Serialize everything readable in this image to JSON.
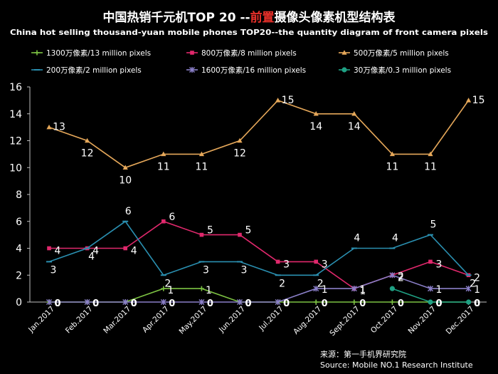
{
  "chart_data": {
    "type": "line",
    "title_parts": [
      "中国热销千元机TOP 20 --",
      "前置",
      "摄像头像素机型结构表"
    ],
    "subtitle": "China hot selling thousand-yuan mobile phones TOP20--the quantity diagram of front camera pixels",
    "categories": [
      "Jan.2017",
      "Feb.2017",
      "Mar.2017",
      "Apr.2017",
      "May.2017",
      "Jun.2017",
      "Jul.2017",
      "Aug.2017",
      "Sept.2017",
      "Oct.2017",
      "Nov.2017",
      "Dec.2017"
    ],
    "y_ticks": [
      "0",
      "2",
      "4",
      "6",
      "8",
      "10",
      "12",
      "14",
      "16"
    ],
    "ylim": [
      0,
      16
    ],
    "grid": false,
    "legend_position": "top",
    "series": [
      {
        "name": "1300万像素/13 million pixels",
        "color": "#7cc242",
        "marker": "plus",
        "values": [
          0,
          0,
          0,
          1,
          1,
          0,
          0,
          0,
          0,
          0,
          0,
          0
        ],
        "labels": [
          "0",
          "0",
          "0",
          "1",
          "1",
          "0",
          "0",
          "0",
          "0",
          "0",
          "0",
          "0"
        ]
      },
      {
        "name": "800万像素/8 million pixels",
        "color": "#e0286c",
        "marker": "square",
        "values": [
          4,
          4,
          4,
          6,
          5,
          5,
          3,
          3,
          1,
          2,
          3,
          2
        ],
        "labels": [
          "4",
          "4",
          "4",
          "6",
          "5",
          "5",
          "3",
          "3",
          "1",
          "2",
          "3",
          "2"
        ]
      },
      {
        "name": "500万像素/5 million pixels",
        "color": "#e6a85a",
        "marker": "triangle",
        "values": [
          13,
          12,
          10,
          11,
          11,
          12,
          15,
          14,
          14,
          11,
          11,
          15
        ],
        "labels": [
          "13",
          "12",
          "10",
          "11",
          "11",
          "12",
          "15",
          "14",
          "14",
          "11",
          "11",
          "15"
        ]
      },
      {
        "name": "200万像素/2 million pixels",
        "color": "#2a8fb0",
        "marker": "dash",
        "values": [
          3,
          4,
          6,
          2,
          3,
          3,
          2,
          2,
          4,
          4,
          5,
          2
        ],
        "labels": [
          "3",
          "4",
          "6",
          "2",
          "3",
          "3",
          "2",
          "2",
          "4",
          "4",
          "5",
          "2"
        ]
      },
      {
        "name": "1600万像素/16 million pixels",
        "color": "#8a7fc8",
        "marker": "star",
        "values": [
          0,
          0,
          0,
          0,
          0,
          0,
          0,
          1,
          1,
          2,
          1,
          1
        ],
        "labels": [
          "0",
          "0",
          "0",
          "0",
          "0",
          "0",
          "0",
          "1",
          "1",
          "2",
          "1",
          "1"
        ]
      },
      {
        "name": "30万像素/0.3 million pixels",
        "color": "#1fa184",
        "marker": "circle",
        "values": [
          null,
          null,
          null,
          null,
          null,
          null,
          null,
          null,
          null,
          1,
          0,
          0
        ],
        "labels": [
          "",
          "",
          "",
          "",
          "",
          "",
          "",
          "",
          "",
          "",
          "0",
          "0"
        ]
      }
    ],
    "source_cn": "来源：第一手机界研究院",
    "source_en": "Source: Mobile NO.1 Research Institute"
  }
}
